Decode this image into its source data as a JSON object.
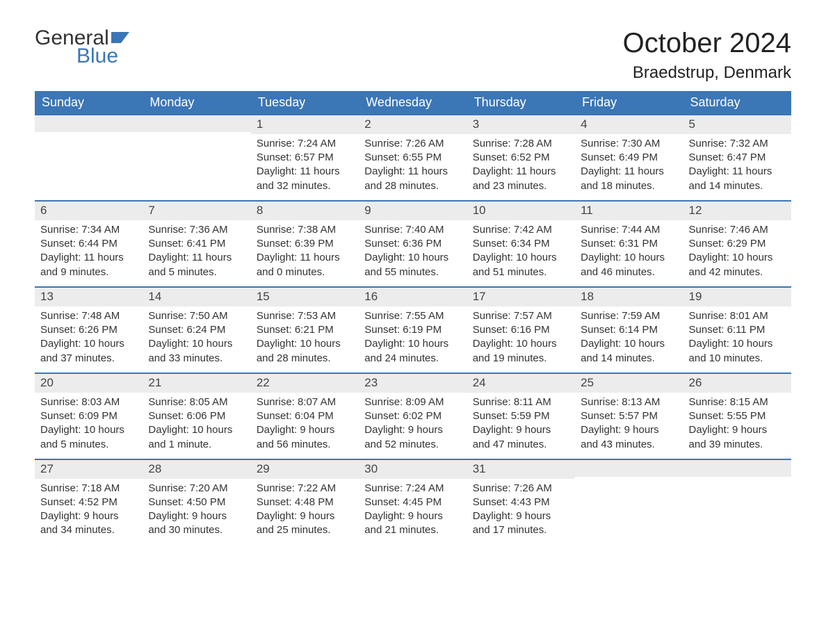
{
  "brand": {
    "word1": "General",
    "word2": "Blue",
    "flag_color": "#3b76b6",
    "text_dark": "#333333"
  },
  "title": "October 2024",
  "location": "Braedstrup, Denmark",
  "colors": {
    "header_bg": "#3b76b6",
    "header_text": "#ffffff",
    "daynum_bg": "#ececec",
    "border": "#3b76b6",
    "body_text": "#333333",
    "page_bg": "#ffffff"
  },
  "typography": {
    "title_fontsize": 40,
    "location_fontsize": 24,
    "dayhead_fontsize": 18,
    "daynum_fontsize": 17,
    "body_fontsize": 15,
    "font_family": "Arial"
  },
  "day_headers": [
    "Sunday",
    "Monday",
    "Tuesday",
    "Wednesday",
    "Thursday",
    "Friday",
    "Saturday"
  ],
  "weeks": [
    [
      {
        "n": "",
        "sunrise": "",
        "sunset": "",
        "daylight": ""
      },
      {
        "n": "",
        "sunrise": "",
        "sunset": "",
        "daylight": ""
      },
      {
        "n": "1",
        "sunrise": "Sunrise: 7:24 AM",
        "sunset": "Sunset: 6:57 PM",
        "daylight": "Daylight: 11 hours and 32 minutes."
      },
      {
        "n": "2",
        "sunrise": "Sunrise: 7:26 AM",
        "sunset": "Sunset: 6:55 PM",
        "daylight": "Daylight: 11 hours and 28 minutes."
      },
      {
        "n": "3",
        "sunrise": "Sunrise: 7:28 AM",
        "sunset": "Sunset: 6:52 PM",
        "daylight": "Daylight: 11 hours and 23 minutes."
      },
      {
        "n": "4",
        "sunrise": "Sunrise: 7:30 AM",
        "sunset": "Sunset: 6:49 PM",
        "daylight": "Daylight: 11 hours and 18 minutes."
      },
      {
        "n": "5",
        "sunrise": "Sunrise: 7:32 AM",
        "sunset": "Sunset: 6:47 PM",
        "daylight": "Daylight: 11 hours and 14 minutes."
      }
    ],
    [
      {
        "n": "6",
        "sunrise": "Sunrise: 7:34 AM",
        "sunset": "Sunset: 6:44 PM",
        "daylight": "Daylight: 11 hours and 9 minutes."
      },
      {
        "n": "7",
        "sunrise": "Sunrise: 7:36 AM",
        "sunset": "Sunset: 6:41 PM",
        "daylight": "Daylight: 11 hours and 5 minutes."
      },
      {
        "n": "8",
        "sunrise": "Sunrise: 7:38 AM",
        "sunset": "Sunset: 6:39 PM",
        "daylight": "Daylight: 11 hours and 0 minutes."
      },
      {
        "n": "9",
        "sunrise": "Sunrise: 7:40 AM",
        "sunset": "Sunset: 6:36 PM",
        "daylight": "Daylight: 10 hours and 55 minutes."
      },
      {
        "n": "10",
        "sunrise": "Sunrise: 7:42 AM",
        "sunset": "Sunset: 6:34 PM",
        "daylight": "Daylight: 10 hours and 51 minutes."
      },
      {
        "n": "11",
        "sunrise": "Sunrise: 7:44 AM",
        "sunset": "Sunset: 6:31 PM",
        "daylight": "Daylight: 10 hours and 46 minutes."
      },
      {
        "n": "12",
        "sunrise": "Sunrise: 7:46 AM",
        "sunset": "Sunset: 6:29 PM",
        "daylight": "Daylight: 10 hours and 42 minutes."
      }
    ],
    [
      {
        "n": "13",
        "sunrise": "Sunrise: 7:48 AM",
        "sunset": "Sunset: 6:26 PM",
        "daylight": "Daylight: 10 hours and 37 minutes."
      },
      {
        "n": "14",
        "sunrise": "Sunrise: 7:50 AM",
        "sunset": "Sunset: 6:24 PM",
        "daylight": "Daylight: 10 hours and 33 minutes."
      },
      {
        "n": "15",
        "sunrise": "Sunrise: 7:53 AM",
        "sunset": "Sunset: 6:21 PM",
        "daylight": "Daylight: 10 hours and 28 minutes."
      },
      {
        "n": "16",
        "sunrise": "Sunrise: 7:55 AM",
        "sunset": "Sunset: 6:19 PM",
        "daylight": "Daylight: 10 hours and 24 minutes."
      },
      {
        "n": "17",
        "sunrise": "Sunrise: 7:57 AM",
        "sunset": "Sunset: 6:16 PM",
        "daylight": "Daylight: 10 hours and 19 minutes."
      },
      {
        "n": "18",
        "sunrise": "Sunrise: 7:59 AM",
        "sunset": "Sunset: 6:14 PM",
        "daylight": "Daylight: 10 hours and 14 minutes."
      },
      {
        "n": "19",
        "sunrise": "Sunrise: 8:01 AM",
        "sunset": "Sunset: 6:11 PM",
        "daylight": "Daylight: 10 hours and 10 minutes."
      }
    ],
    [
      {
        "n": "20",
        "sunrise": "Sunrise: 8:03 AM",
        "sunset": "Sunset: 6:09 PM",
        "daylight": "Daylight: 10 hours and 5 minutes."
      },
      {
        "n": "21",
        "sunrise": "Sunrise: 8:05 AM",
        "sunset": "Sunset: 6:06 PM",
        "daylight": "Daylight: 10 hours and 1 minute."
      },
      {
        "n": "22",
        "sunrise": "Sunrise: 8:07 AM",
        "sunset": "Sunset: 6:04 PM",
        "daylight": "Daylight: 9 hours and 56 minutes."
      },
      {
        "n": "23",
        "sunrise": "Sunrise: 8:09 AM",
        "sunset": "Sunset: 6:02 PM",
        "daylight": "Daylight: 9 hours and 52 minutes."
      },
      {
        "n": "24",
        "sunrise": "Sunrise: 8:11 AM",
        "sunset": "Sunset: 5:59 PM",
        "daylight": "Daylight: 9 hours and 47 minutes."
      },
      {
        "n": "25",
        "sunrise": "Sunrise: 8:13 AM",
        "sunset": "Sunset: 5:57 PM",
        "daylight": "Daylight: 9 hours and 43 minutes."
      },
      {
        "n": "26",
        "sunrise": "Sunrise: 8:15 AM",
        "sunset": "Sunset: 5:55 PM",
        "daylight": "Daylight: 9 hours and 39 minutes."
      }
    ],
    [
      {
        "n": "27",
        "sunrise": "Sunrise: 7:18 AM",
        "sunset": "Sunset: 4:52 PM",
        "daylight": "Daylight: 9 hours and 34 minutes."
      },
      {
        "n": "28",
        "sunrise": "Sunrise: 7:20 AM",
        "sunset": "Sunset: 4:50 PM",
        "daylight": "Daylight: 9 hours and 30 minutes."
      },
      {
        "n": "29",
        "sunrise": "Sunrise: 7:22 AM",
        "sunset": "Sunset: 4:48 PM",
        "daylight": "Daylight: 9 hours and 25 minutes."
      },
      {
        "n": "30",
        "sunrise": "Sunrise: 7:24 AM",
        "sunset": "Sunset: 4:45 PM",
        "daylight": "Daylight: 9 hours and 21 minutes."
      },
      {
        "n": "31",
        "sunrise": "Sunrise: 7:26 AM",
        "sunset": "Sunset: 4:43 PM",
        "daylight": "Daylight: 9 hours and 17 minutes."
      },
      {
        "n": "",
        "sunrise": "",
        "sunset": "",
        "daylight": ""
      },
      {
        "n": "",
        "sunrise": "",
        "sunset": "",
        "daylight": ""
      }
    ]
  ]
}
